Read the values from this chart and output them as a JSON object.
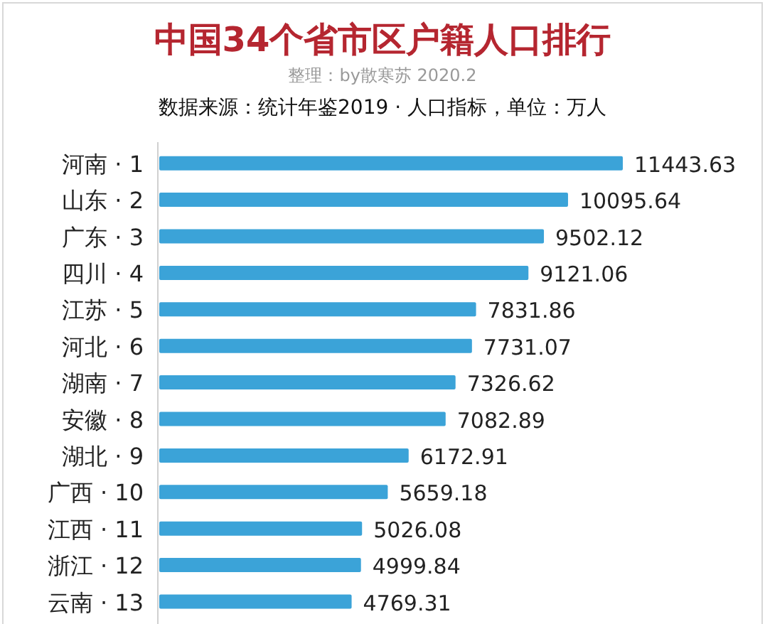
{
  "chart_data": {
    "type": "bar",
    "orientation": "horizontal",
    "title": "中国34个省市区户籍人口排行",
    "subtitle": "整理：by散寒苏 2020.2",
    "annotations": [
      "数据来源：统计年鉴2019 · 人口指标，单位：万人"
    ],
    "categories": [
      "河南 · 1",
      "山东 · 2",
      "广东 · 3",
      "四川 · 4",
      "江苏 · 5",
      "河北 · 6",
      "湖南 · 7",
      "安徽 · 8",
      "湖北 · 9",
      "广西 · 10",
      "江西 · 11",
      "浙江 · 12",
      "云南 · 13"
    ],
    "values": [
      11443.63,
      10095.64,
      9502.12,
      9121.06,
      7831.86,
      7731.07,
      7326.62,
      7082.89,
      6172.91,
      5659.18,
      5026.08,
      4999.84,
      4769.31
    ],
    "color": "#3ba3d8",
    "data_labels": true
  }
}
